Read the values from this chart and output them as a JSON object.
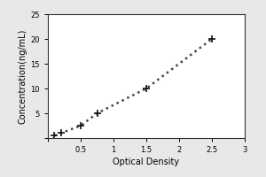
{
  "x": [
    0.1,
    0.2,
    0.5,
    0.75,
    1.5,
    2.5
  ],
  "y": [
    0.5,
    1.0,
    2.5,
    5.0,
    10.0,
    20.0
  ],
  "xlabel": "Optical Density",
  "ylabel": "Concentration(ng/mL)",
  "xlim": [
    0,
    3
  ],
  "ylim": [
    0,
    25
  ],
  "xticks": [
    0,
    0.5,
    1.0,
    1.5,
    2.0,
    2.5,
    3.0
  ],
  "xticklabels": [
    "",
    "0.5",
    "1",
    "1.5",
    "2",
    "2.5",
    "3"
  ],
  "yticks": [
    0,
    5,
    10,
    15,
    20,
    25
  ],
  "yticklabels": [
    "",
    "5",
    "10",
    "15",
    "20",
    "25"
  ],
  "line_color": "#444444",
  "marker": "+",
  "marker_color": "#111111",
  "marker_size": 6,
  "line_style": ":",
  "line_width": 1.8,
  "marker_linewidth": 1.2,
  "background_color": "#e8e8e8",
  "plot_bg_color": "#ffffff",
  "tick_fontsize": 6,
  "label_fontsize": 7,
  "outer_border_color": "#333333"
}
